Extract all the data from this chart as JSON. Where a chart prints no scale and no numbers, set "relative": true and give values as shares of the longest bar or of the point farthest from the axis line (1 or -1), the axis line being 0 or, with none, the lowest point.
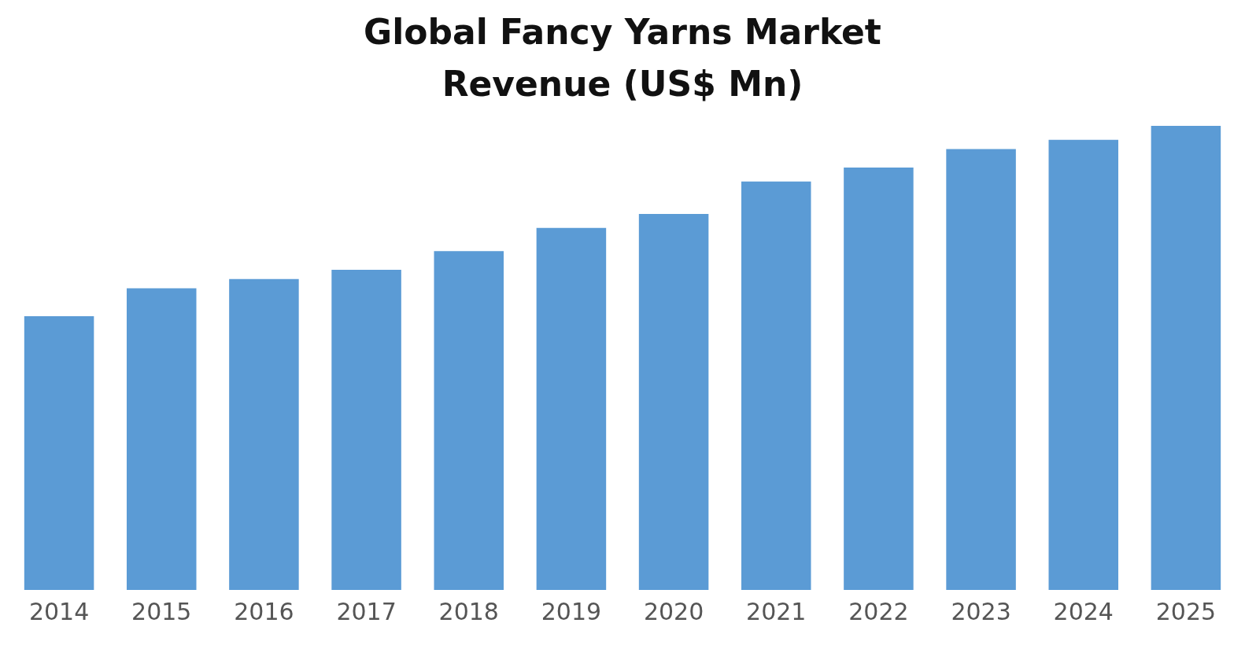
{
  "chart_data": {
    "type": "bar",
    "title": "Global Fancy Yarns Market Revenue  (US$ Mn)",
    "relative": true,
    "categories": [
      "2014",
      "2015",
      "2016",
      "2017",
      "2018",
      "2019",
      "2020",
      "2021",
      "2022",
      "2023",
      "2024",
      "2025"
    ],
    "values": [
      0.59,
      0.65,
      0.67,
      0.69,
      0.73,
      0.78,
      0.81,
      0.88,
      0.91,
      0.95,
      0.97,
      1
    ],
    "color": "#5b9bd5",
    "grid": false,
    "legend": false
  }
}
